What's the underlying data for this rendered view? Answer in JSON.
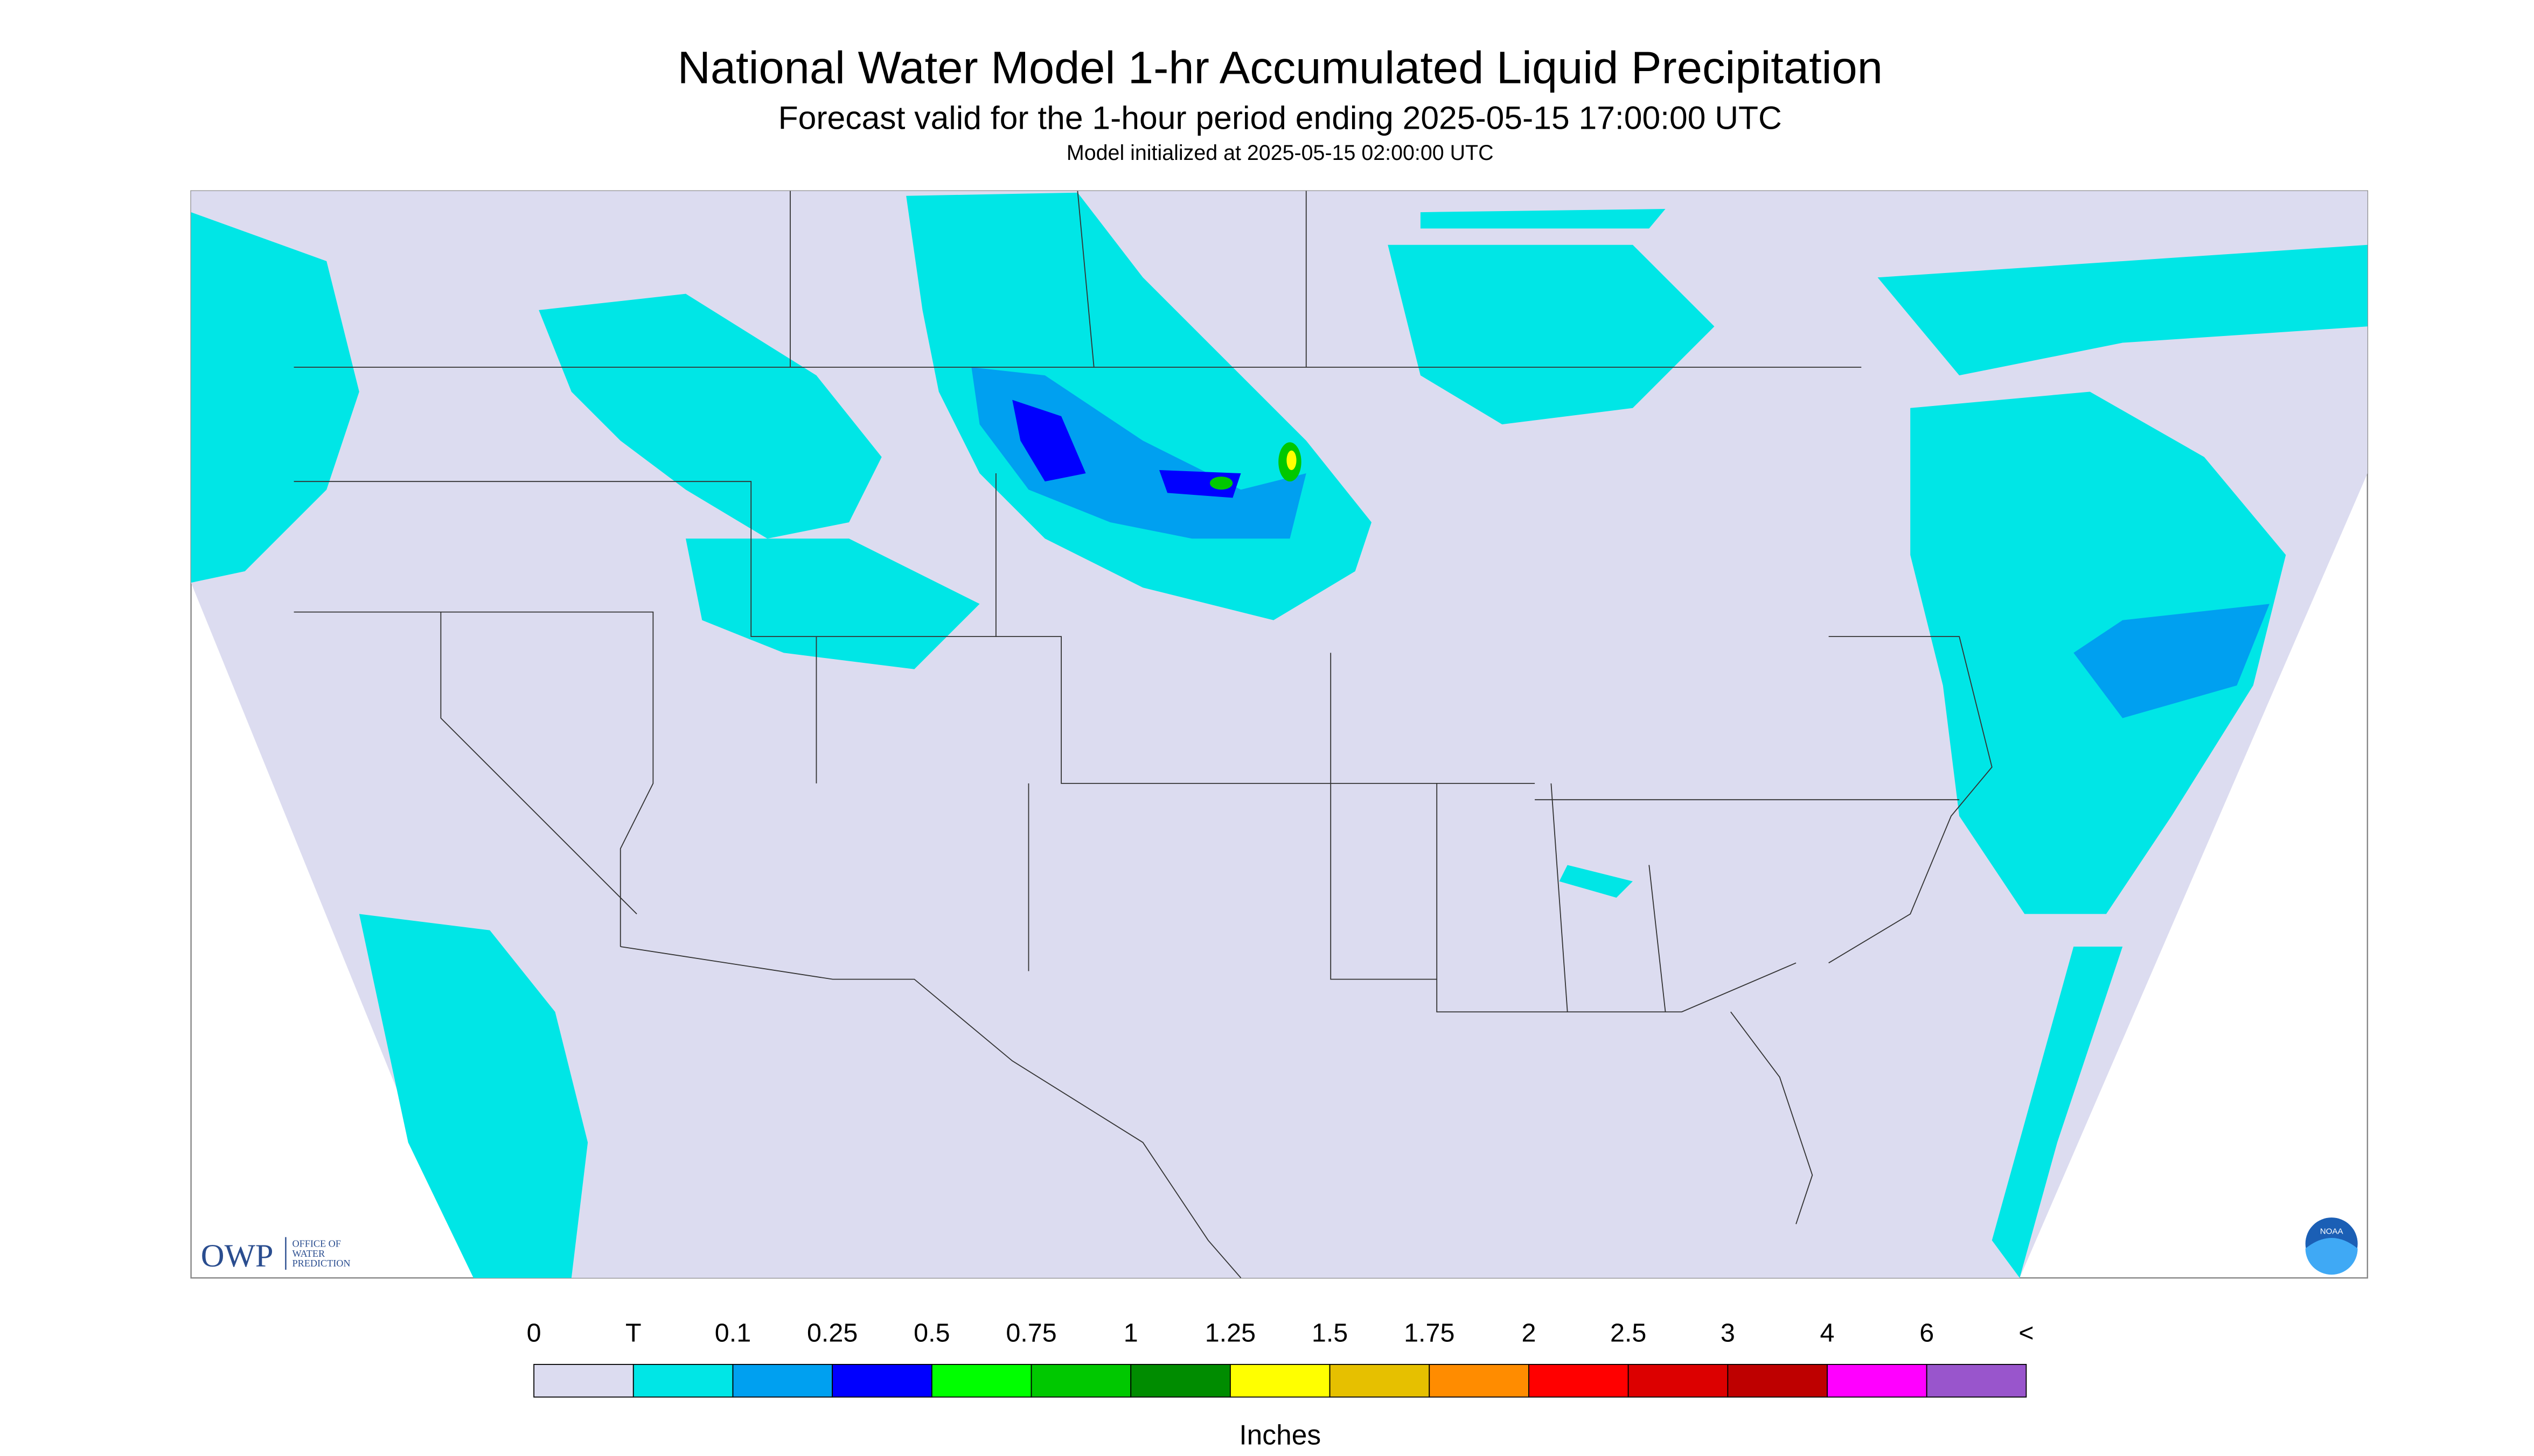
{
  "header": {
    "title": "National Water Model 1-hr Accumulated Liquid Precipitation",
    "subtitle": "Forecast valid for the 1-hour period ending 2025-05-15 17:00:00 UTC",
    "init": "Model initialized at 2025-05-15 02:00:00 UTC"
  },
  "legend": {
    "labels": [
      "0",
      "T",
      "0.1",
      "0.25",
      "0.5",
      "0.75",
      "1",
      "1.25",
      "1.5",
      "1.75",
      "2",
      "2.5",
      "3",
      "4",
      "6",
      "<"
    ],
    "colors": [
      "#dcdcf0",
      "#00e6e6",
      "#00a0f0",
      "#0000ff",
      "#00ff00",
      "#00c800",
      "#008c00",
      "#ffff00",
      "#e6c000",
      "#ff8c00",
      "#ff0000",
      "#dc0000",
      "#be0000",
      "#ff00ff",
      "#9955cc"
    ],
    "unit": "Inches"
  },
  "logos": {
    "owp": "OWP",
    "owp_full": [
      "OFFICE OF",
      "WATER",
      "PREDICTION"
    ],
    "noaa": "NOAA"
  }
}
